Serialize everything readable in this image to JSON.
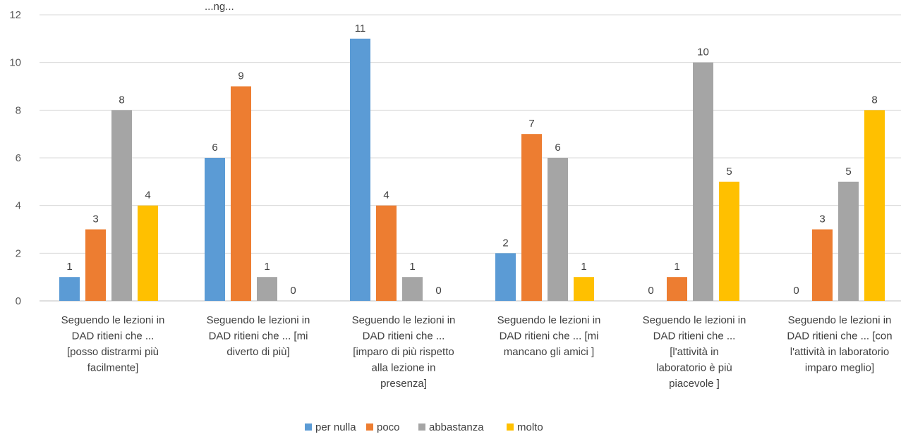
{
  "chart_data": {
    "type": "bar",
    "title": "...ng...",
    "ylim": [
      0,
      12
    ],
    "yticks": [
      0,
      2,
      4,
      6,
      8,
      10,
      12
    ],
    "grid": true,
    "legend_position": "bottom",
    "categories": [
      [
        "Seguendo le lezioni in",
        "DAD ritieni che ...",
        "[posso distrarmi più",
        "facilmente]"
      ],
      [
        "Seguendo le lezioni in",
        "DAD ritieni che ... [mi",
        "diverto di più]"
      ],
      [
        "Seguendo le lezioni in",
        "DAD ritieni che ...",
        "[imparo di più rispetto",
        "alla lezione in",
        "presenza]"
      ],
      [
        "Seguendo le lezioni in",
        "DAD ritieni che ... [mi",
        "mancano gli amici ]"
      ],
      [
        "Seguendo le lezioni in",
        "DAD ritieni che ...",
        "[l'attività in",
        "laboratorio è più",
        "piacevole ]"
      ],
      [
        "Seguendo le lezioni in",
        "DAD ritieni che ... [con",
        "l'attività in laboratorio",
        "imparo meglio]"
      ]
    ],
    "series": [
      {
        "name": "per nulla",
        "color": "#5b9bd5",
        "values": [
          1,
          6,
          11,
          2,
          0,
          0
        ]
      },
      {
        "name": "poco",
        "color": "#ed7d31",
        "values": [
          3,
          9,
          4,
          7,
          1,
          3
        ]
      },
      {
        "name": "abbastanza",
        "color": "#a5a5a5",
        "values": [
          8,
          1,
          1,
          6,
          10,
          5
        ]
      },
      {
        "name": "molto",
        "color": "#ffc000",
        "values": [
          4,
          0,
          0,
          1,
          5,
          8
        ]
      }
    ]
  }
}
